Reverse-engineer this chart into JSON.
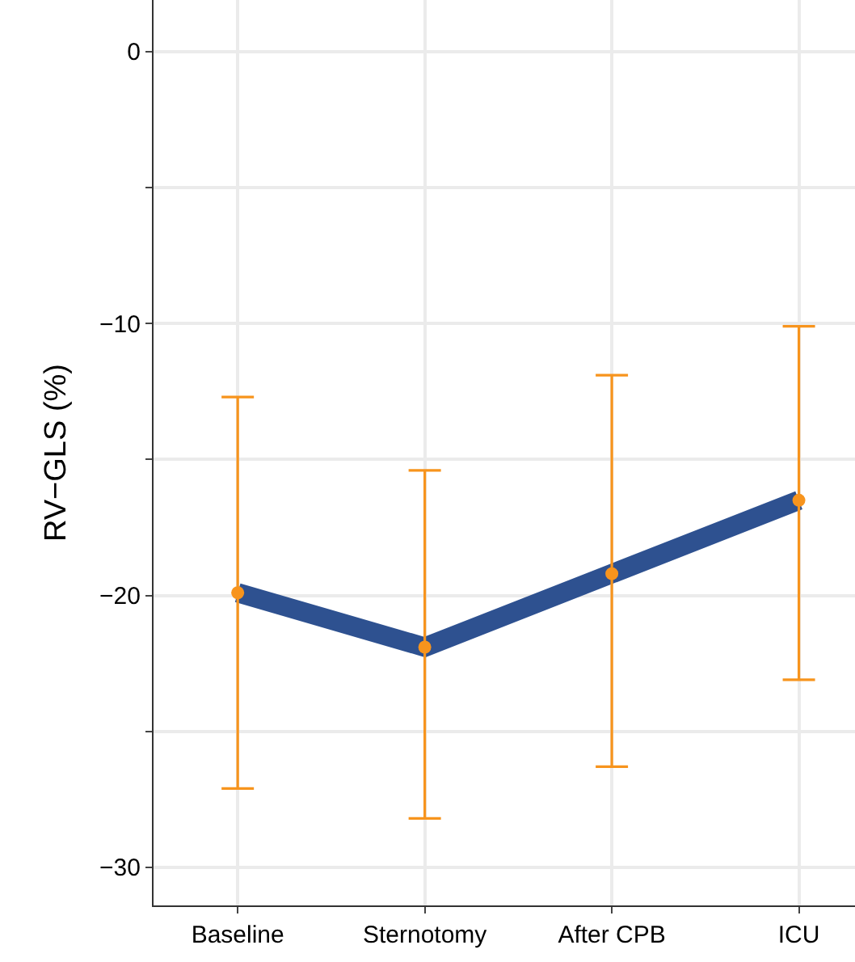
{
  "chart_data": {
    "type": "line",
    "ylabel": "RV−GLS (%)",
    "categories": [
      "Baseline",
      "Sternotomy",
      "After CPB",
      "ICU"
    ],
    "series": [
      {
        "color": "#2e5190",
        "values": [
          -19.9,
          -21.9,
          -19.2,
          -16.5
        ]
      },
      {
        "type": "scatter",
        "marker": "circle",
        "color": "#f7941d",
        "values": [
          -19.9,
          -21.9,
          -19.2,
          -16.5
        ],
        "errors": [
          [
            -27.1,
            -12.7
          ],
          [
            -28.2,
            -15.4
          ],
          [
            -26.3,
            -11.9
          ],
          [
            -23.1,
            -10.1
          ]
        ]
      }
    ],
    "ylim": [
      -31.4,
      1.9
    ],
    "yticks": [
      {
        "value": -30,
        "label": "−30"
      },
      {
        "value": -25,
        "label": null
      },
      {
        "value": -20,
        "label": "−20"
      },
      {
        "value": -15,
        "label": null
      },
      {
        "value": -10,
        "label": "−10"
      },
      {
        "value": -5,
        "label": null
      },
      0
    ],
    "grid": true,
    "line_style": "solid"
  }
}
